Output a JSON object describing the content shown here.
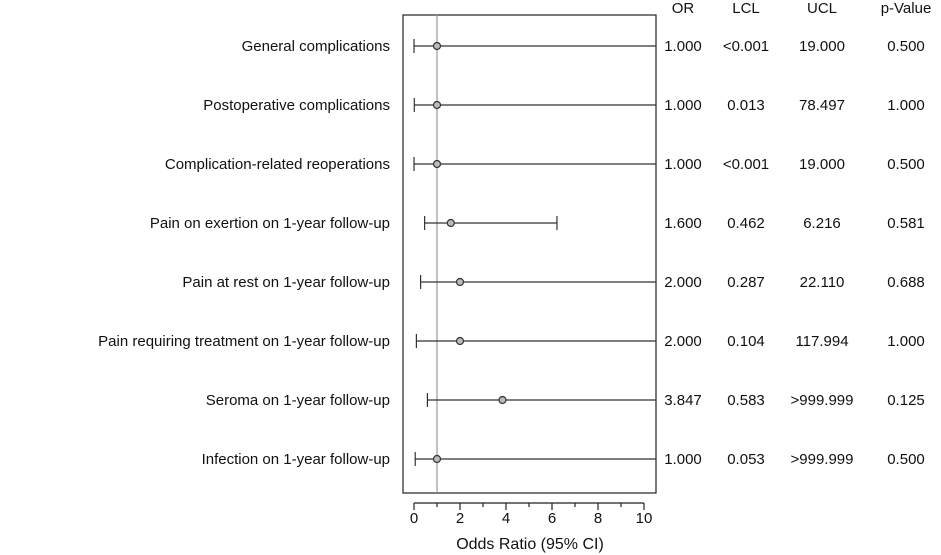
{
  "chart_data": {
    "type": "forest",
    "xlabel": "Odds Ratio (95% CI)",
    "xlim": [
      0,
      10
    ],
    "x_ticks": [
      "0",
      "2",
      "4",
      "6",
      "8",
      "10"
    ],
    "reference_line": 1,
    "columns": [
      "OR",
      "LCL",
      "UCL",
      "p-Value"
    ],
    "rows": [
      {
        "label": "General complications",
        "or": 1.0,
        "lcl": 0.001,
        "ucl": 19.0,
        "or_text": "1.000",
        "lcl_text": "<0.001",
        "ucl_text": "19.000",
        "p_text": "0.500"
      },
      {
        "label": "Postoperative complications",
        "or": 1.0,
        "lcl": 0.013,
        "ucl": 78.497,
        "or_text": "1.000",
        "lcl_text": "0.013",
        "ucl_text": "78.497",
        "p_text": "1.000"
      },
      {
        "label": "Complication-related reoperations",
        "or": 1.0,
        "lcl": 0.001,
        "ucl": 19.0,
        "or_text": "1.000",
        "lcl_text": "<0.001",
        "ucl_text": "19.000",
        "p_text": "0.500"
      },
      {
        "label": "Pain on exertion on 1-year follow-up",
        "or": 1.6,
        "lcl": 0.462,
        "ucl": 6.216,
        "or_text": "1.600",
        "lcl_text": "0.462",
        "ucl_text": "6.216",
        "p_text": "0.581"
      },
      {
        "label": "Pain at rest on 1-year follow-up",
        "or": 2.0,
        "lcl": 0.287,
        "ucl": 22.11,
        "or_text": "2.000",
        "lcl_text": "0.287",
        "ucl_text": "22.110",
        "p_text": "0.688"
      },
      {
        "label": "Pain requiring treatment on 1-year follow-up",
        "or": 2.0,
        "lcl": 0.104,
        "ucl": 117.994,
        "or_text": "2.000",
        "lcl_text": "0.104",
        "ucl_text": "117.994",
        "p_text": "1.000"
      },
      {
        "label": "Seroma on 1-year follow-up",
        "or": 3.847,
        "lcl": 0.583,
        "ucl": 999.999,
        "or_text": "3.847",
        "lcl_text": "0.583",
        "ucl_text": ">999.999",
        "p_text": "0.125"
      },
      {
        "label": "Infection on 1-year follow-up",
        "or": 1.0,
        "lcl": 0.053,
        "ucl": 999.999,
        "or_text": "1.000",
        "lcl_text": "0.053",
        "ucl_text": ">999.999",
        "p_text": "0.500"
      }
    ]
  }
}
